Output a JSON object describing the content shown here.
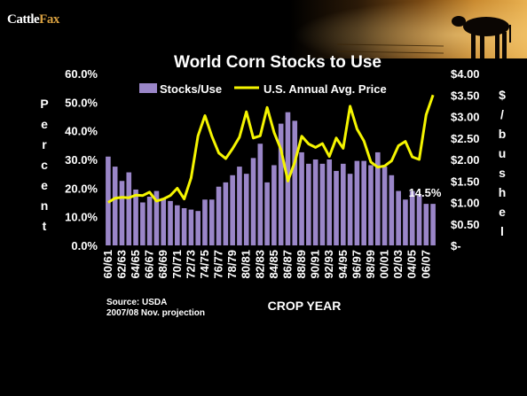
{
  "logo": {
    "brand_a": "Cattle",
    "brand_b": "Fax"
  },
  "chart_data": {
    "type": "bar",
    "title": "World Corn Stocks to Use",
    "xlabel": "CROP YEAR",
    "ylabel_left": "Percent",
    "ylabel_right": "$/bushel",
    "left_ticks": [
      "60.0%",
      "50.0%",
      "40.0%",
      "30.0%",
      "20.0%",
      "10.0%",
      "0.0%"
    ],
    "right_ticks": [
      "$4.00",
      "$3.50",
      "$3.00",
      "$2.50",
      "$2.00",
      "$1.50",
      "$1.00",
      "$0.50",
      "$-"
    ],
    "ylim_left": [
      0,
      60
    ],
    "ylim_right": [
      0,
      4
    ],
    "legend": {
      "placement": "top",
      "bar_label": "Stocks/Use",
      "line_label": "U.S. Annual Avg. Price"
    },
    "bar_color": "#9a86c8",
    "line_color": "#f5f500",
    "categories": [
      "60/61",
      "61/62",
      "62/63",
      "63/64",
      "64/65",
      "65/66",
      "66/67",
      "67/68",
      "68/69",
      "69/70",
      "70/71",
      "71/72",
      "72/73",
      "73/74",
      "74/75",
      "75/76",
      "76/77",
      "77/78",
      "78/79",
      "79/80",
      "80/81",
      "81/82",
      "82/83",
      "83/84",
      "84/85",
      "85/86",
      "86/87",
      "87/88",
      "88/89",
      "89/90",
      "90/91",
      "91/92",
      "92/93",
      "93/94",
      "94/95",
      "95/96",
      "96/97",
      "97/98",
      "98/99",
      "99/00",
      "00/01",
      "01/02",
      "02/03",
      "03/04",
      "04/05",
      "05/06",
      "06/07",
      "07/08"
    ],
    "tick_labels": [
      "60/61",
      "62/63",
      "64/65",
      "66/67",
      "68/69",
      "70/71",
      "72/73",
      "74/75",
      "76/77",
      "78/79",
      "80/81",
      "82/83",
      "84/85",
      "86/87",
      "88/89",
      "90/91",
      "92/93",
      "94/95",
      "96/97",
      "98/99",
      "00/01",
      "02/03",
      "04/05",
      "06/07"
    ],
    "series": [
      {
        "name": "Stocks/Use",
        "axis": "left",
        "values": [
          31,
          27.5,
          22.5,
          25.5,
          19.5,
          15,
          17,
          19,
          16.5,
          15.5,
          14,
          13,
          12.5,
          12,
          16,
          16,
          20.5,
          22,
          24.5,
          27.5,
          25,
          30.5,
          35.5,
          22,
          28,
          42.5,
          46.5,
          43.5,
          32.5,
          28.5,
          30,
          28.5,
          30,
          26,
          28.5,
          25,
          29.5,
          29.5,
          28,
          32.5,
          27.5,
          24.5,
          19,
          16,
          19,
          17.5,
          14.5,
          14.5
        ]
      },
      {
        "name": "U.S. Annual Avg. Price",
        "axis": "right",
        "values": [
          1.0,
          1.1,
          1.12,
          1.11,
          1.17,
          1.16,
          1.24,
          1.03,
          1.08,
          1.16,
          1.33,
          1.08,
          1.57,
          2.55,
          3.02,
          2.54,
          2.15,
          2.02,
          2.25,
          2.52,
          3.11,
          2.5,
          2.55,
          3.21,
          2.63,
          2.23,
          1.5,
          1.94,
          2.54,
          2.36,
          2.28,
          2.37,
          2.07,
          2.5,
          2.26,
          3.24,
          2.71,
          2.43,
          1.94,
          1.82,
          1.85,
          1.97,
          2.32,
          2.42,
          2.06,
          2.0,
          3.04,
          3.5
        ]
      }
    ],
    "annotation": "14.5%",
    "source_line_1": "Source: USDA",
    "source_line_2": "2007/08 Nov. projection"
  }
}
